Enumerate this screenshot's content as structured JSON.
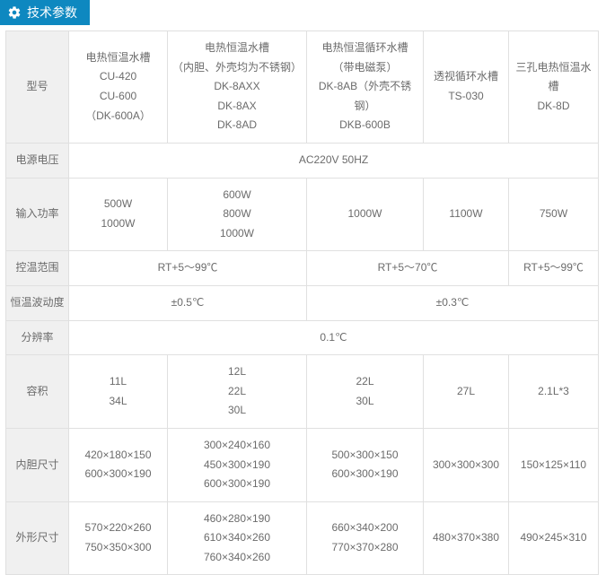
{
  "header": {
    "title": "技术参数",
    "bg_color": "#0e88c0"
  },
  "table": {
    "row_labels": [
      "型号",
      "电源电压",
      "输入功率",
      "控温范围",
      "恒温波动度",
      "分辨率",
      "容积",
      "内胆尺寸",
      "外形尺寸"
    ],
    "models": {
      "c1": [
        "电热恒温水槽",
        "CU-420",
        "CU-600",
        "（DK-600A）"
      ],
      "c2": [
        "电热恒温水槽",
        "（内胆、外壳均为不锈钢）",
        "DK-8AXX",
        "DK-8AX",
        "DK-8AD"
      ],
      "c3": [
        "电热恒温循环水槽",
        "（带电磁泵）",
        "DK-8AB（外壳不锈钢）",
        "DKB-600B"
      ],
      "c4": [
        "透视循环水槽",
        "TS-030"
      ],
      "c5": [
        "三孔电热恒温水槽",
        "DK-8D"
      ]
    },
    "power_supply": "AC220V   50HZ",
    "input_power": {
      "c1": [
        "500W",
        "1000W"
      ],
      "c2": [
        "600W",
        "800W",
        "1000W"
      ],
      "c3": "1000W",
      "c4": "1100W",
      "c5": "750W"
    },
    "temp_range": {
      "g1": "RT+5～99℃",
      "g2": "RT+5～70℃",
      "g3": "RT+5～99℃"
    },
    "fluctuation": {
      "g1": "±0.5℃",
      "g2": "±0.3℃"
    },
    "resolution": "0.1℃",
    "volume": {
      "c1": [
        "11L",
        "34L"
      ],
      "c2": [
        "12L",
        "22L",
        "30L"
      ],
      "c3": [
        "22L",
        "30L"
      ],
      "c4": "27L",
      "c5": "2.1L*3"
    },
    "inner": {
      "c1": [
        "420×180×150",
        "600×300×190"
      ],
      "c2": [
        "300×240×160",
        "450×300×190",
        "600×300×190"
      ],
      "c3": [
        "500×300×150",
        "600×300×190"
      ],
      "c4": "300×300×300",
      "c5": "150×125×110"
    },
    "outer": {
      "c1": [
        "570×220×260",
        "750×350×300"
      ],
      "c2": [
        "460×280×190",
        "610×340×260",
        "760×340×260"
      ],
      "c3": [
        "660×340×200",
        "770×370×280"
      ],
      "c4": "480×370×380",
      "c5": "490×245×310"
    }
  }
}
